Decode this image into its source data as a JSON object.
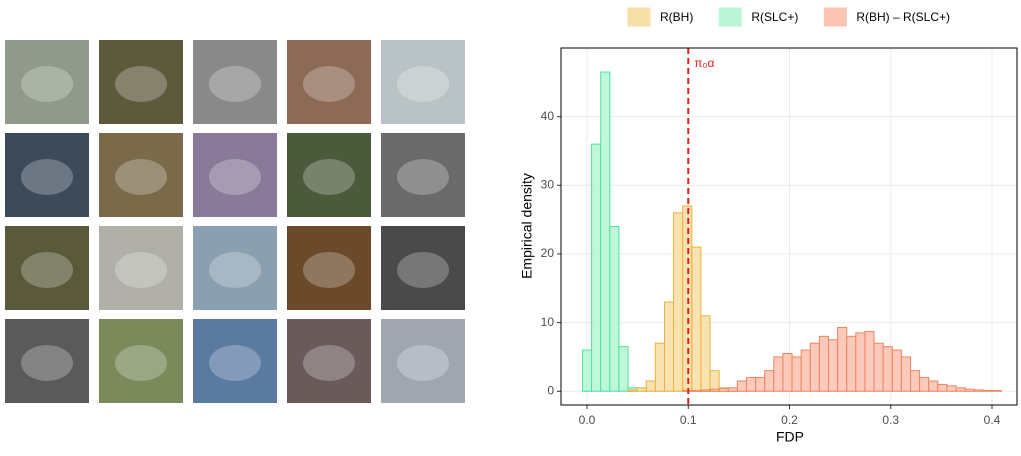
{
  "chart_data": {
    "type": "histogram",
    "x_label": "FDP",
    "y_label": "Empirical density",
    "bins": [
      -0.0045,
      0.0045,
      0.0135,
      0.0225,
      0.0315,
      0.0405,
      0.0495,
      0.0585,
      0.0675,
      0.0765,
      0.0855,
      0.0945,
      0.1035,
      0.1125,
      0.1215,
      0.1305,
      0.1395,
      0.1485,
      0.1575,
      0.1665,
      0.1755,
      0.1845,
      0.1935,
      0.2025,
      0.2115,
      0.2205,
      0.2295,
      0.2385,
      0.2475,
      0.2565,
      0.2655,
      0.2745,
      0.2835,
      0.2925,
      0.3015,
      0.3105,
      0.3195,
      0.3285,
      0.3375,
      0.3465,
      0.3555,
      0.3645,
      0.3735,
      0.3825,
      0.3915,
      0.4005,
      0.4095
    ],
    "series": [
      {
        "name": "R(BH)",
        "color": "#f7dfa8",
        "edge": "#e8b33c",
        "values": [
          0,
          0,
          0,
          0,
          0,
          0.2,
          0.5,
          1.5,
          7,
          13,
          26,
          27,
          21,
          11,
          3,
          0.5,
          0.2,
          0,
          0,
          0,
          0,
          0,
          0,
          0,
          0,
          0,
          0,
          0,
          0,
          0,
          0,
          0,
          0,
          0,
          0,
          0,
          0,
          0,
          0,
          0,
          0,
          0,
          0,
          0,
          0,
          0
        ]
      },
      {
        "name": "R(SLC+)",
        "color": "#b8f6d6",
        "edge": "#4fe39b",
        "values": [
          6,
          36,
          46.5,
          24,
          6.5,
          0.5,
          0,
          0,
          0,
          0,
          0,
          0,
          0,
          0,
          0,
          0,
          0,
          0,
          0,
          0,
          0,
          0,
          0,
          0,
          0,
          0,
          0,
          0,
          0,
          0,
          0,
          0,
          0,
          0,
          0,
          0,
          0,
          0,
          0,
          0,
          0,
          0,
          0,
          0,
          0,
          0
        ]
      },
      {
        "name": "R(BH) – R(SLC+)",
        "color": "#fcc4b2",
        "edge": "#ef8460",
        "values": [
          0,
          0,
          0,
          0,
          0,
          0,
          0,
          0,
          0,
          0,
          0,
          0.1,
          0.1,
          0.2,
          0.3,
          0.4,
          0.5,
          1.5,
          2,
          2,
          3,
          5,
          5.5,
          5,
          6,
          7,
          8,
          7.5,
          9.3,
          8,
          8.5,
          8.7,
          7,
          6.5,
          6,
          5,
          3,
          2,
          1.5,
          1,
          0.8,
          0.5,
          0.3,
          0.2,
          0.1,
          0.1
        ]
      }
    ],
    "draw_order": [
      1,
      0,
      2
    ],
    "xlim": [
      -0.0257,
      0.4247
    ],
    "ylim": [
      -2,
      50
    ],
    "xticks": [
      {
        "value": 0,
        "label": "0.0"
      },
      0.1,
      0.2,
      0.3,
      0.4
    ],
    "yticks": [
      0,
      10,
      20,
      30,
      40
    ],
    "grid": true,
    "legend": "top",
    "annotation": {
      "x": 0.1,
      "label": "π₀α",
      "color": "#e02020"
    }
  }
}
